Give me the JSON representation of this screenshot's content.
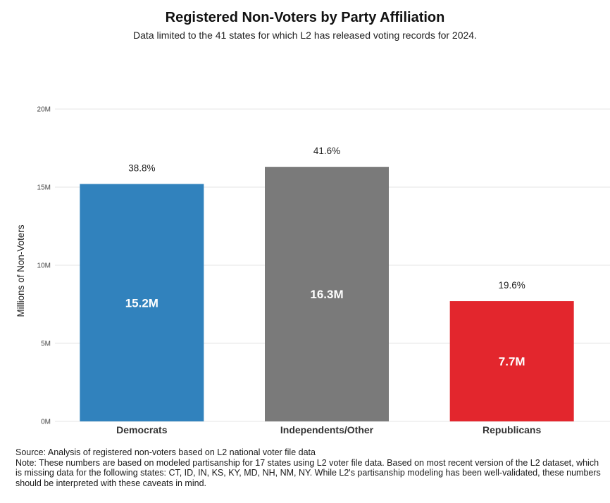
{
  "chart_data": {
    "type": "bar",
    "title": "Registered Non-Voters by Party Affiliation",
    "subtitle": "Data limited to the 41 states for which L2 has released voting records for 2024.",
    "ylabel": "Millions of Non-Voters",
    "xlabel": "",
    "ylim": [
      0,
      20
    ],
    "y_ticks": [
      0,
      5,
      10,
      15,
      20
    ],
    "y_tick_labels": [
      "0M",
      "5M",
      "10M",
      "15M",
      "20M"
    ],
    "grid": true,
    "categories": [
      "Democrats",
      "Independents/Other",
      "Republicans"
    ],
    "values": [
      15.2,
      16.3,
      7.7
    ],
    "value_labels": [
      "15.2M",
      "16.3M",
      "7.7M"
    ],
    "percent_labels": [
      "38.8%",
      "41.6%",
      "19.6%"
    ],
    "colors": [
      "#3182bd",
      "#7a7a7a",
      "#e3262d"
    ]
  },
  "footer": {
    "source": "Source: Analysis of registered non-voters based on L2 national voter file data",
    "note": "Note: These numbers are based on modeled partisanship for 17 states using L2 voter file data. Based on most recent version of the L2 dataset, which is missing data for the following states: CT, ID, IN, KS, KY, MD, NH, NM, NY. While L2's partisanship modeling has been well-validated, these numbers should be interpreted with these caveats in mind."
  }
}
